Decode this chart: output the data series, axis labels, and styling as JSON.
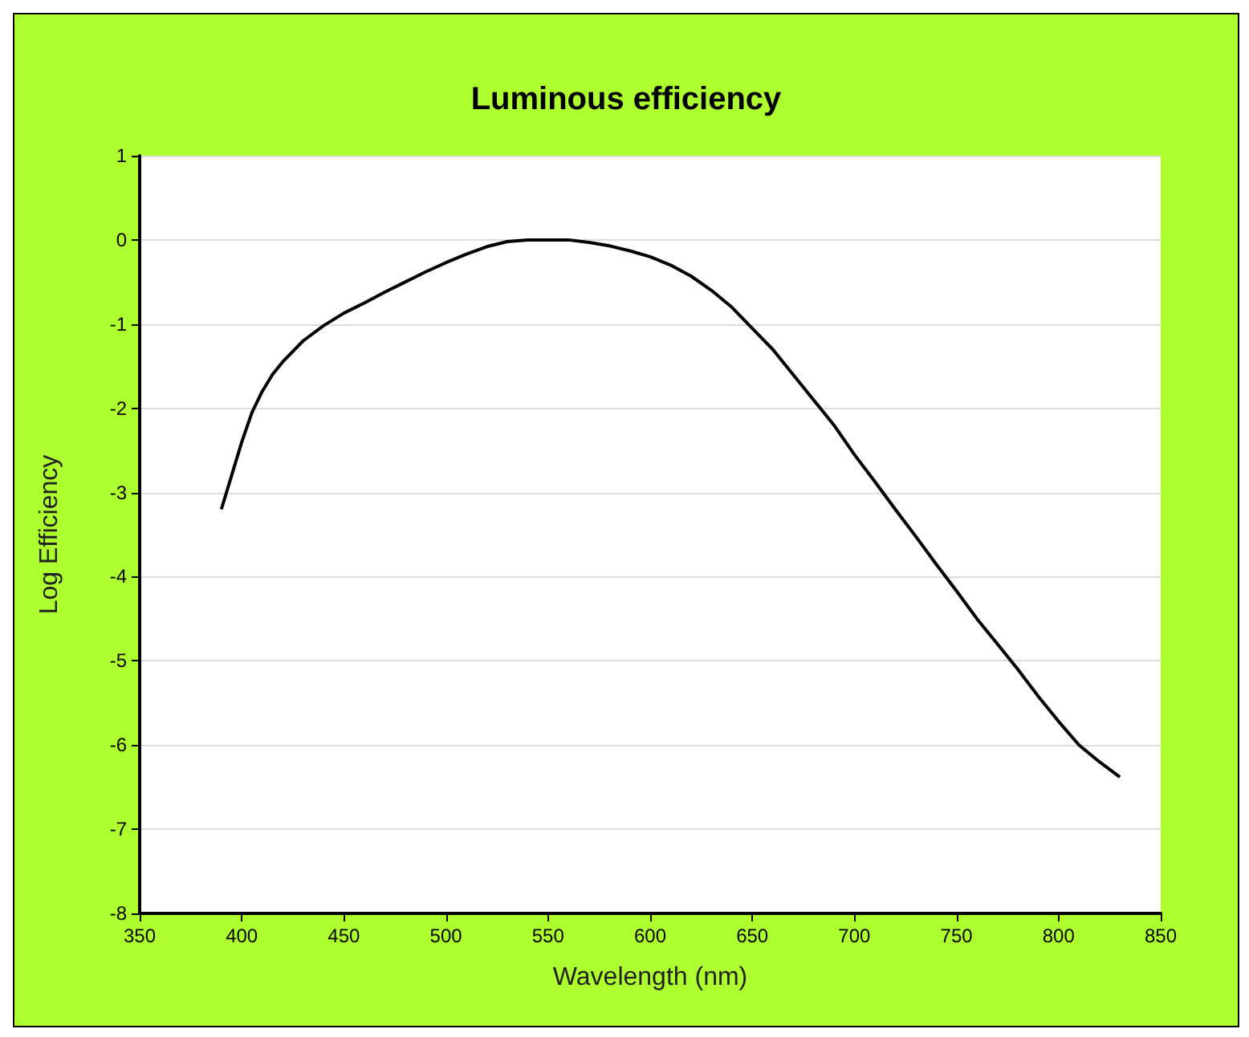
{
  "chart_data": {
    "type": "line",
    "title": "Luminous efficiency",
    "xlabel": "Wavelength (nm)",
    "ylabel": "Log Efficiency",
    "x": [
      390,
      395,
      400,
      405,
      410,
      415,
      420,
      430,
      440,
      450,
      460,
      470,
      480,
      490,
      500,
      510,
      520,
      530,
      540,
      550,
      560,
      570,
      580,
      590,
      600,
      610,
      620,
      630,
      640,
      650,
      660,
      670,
      680,
      690,
      700,
      710,
      720,
      730,
      740,
      750,
      760,
      770,
      780,
      790,
      800,
      810,
      820,
      830
    ],
    "series": [
      {
        "color": "#000000",
        "values": [
          -3.2,
          -2.8,
          -2.4,
          -2.05,
          -1.8,
          -1.6,
          -1.45,
          -1.2,
          -1.02,
          -0.87,
          -0.75,
          -0.62,
          -0.5,
          -0.38,
          -0.27,
          -0.17,
          -0.08,
          -0.02,
          0,
          0,
          0,
          -0.03,
          -0.07,
          -0.13,
          -0.2,
          -0.3,
          -0.43,
          -0.6,
          -0.8,
          -1.05,
          -1.3,
          -1.6,
          -1.9,
          -2.2,
          -2.55,
          -2.87,
          -3.2,
          -3.52,
          -3.85,
          -4.17,
          -4.5,
          -4.8,
          -5.1,
          -5.42,
          -5.72,
          -6.0,
          -6.2,
          -6.38
        ]
      }
    ],
    "xlim": [
      350,
      850
    ],
    "xticks": [
      350,
      400,
      450,
      500,
      550,
      600,
      650,
      700,
      750,
      800,
      850
    ],
    "ylim": [
      -8,
      1
    ],
    "yticks": [
      -8,
      -7,
      -6,
      -5,
      -4,
      -3,
      -2,
      -1,
      0,
      1
    ],
    "grid": "y",
    "marker": "none",
    "line_style": "solid"
  }
}
